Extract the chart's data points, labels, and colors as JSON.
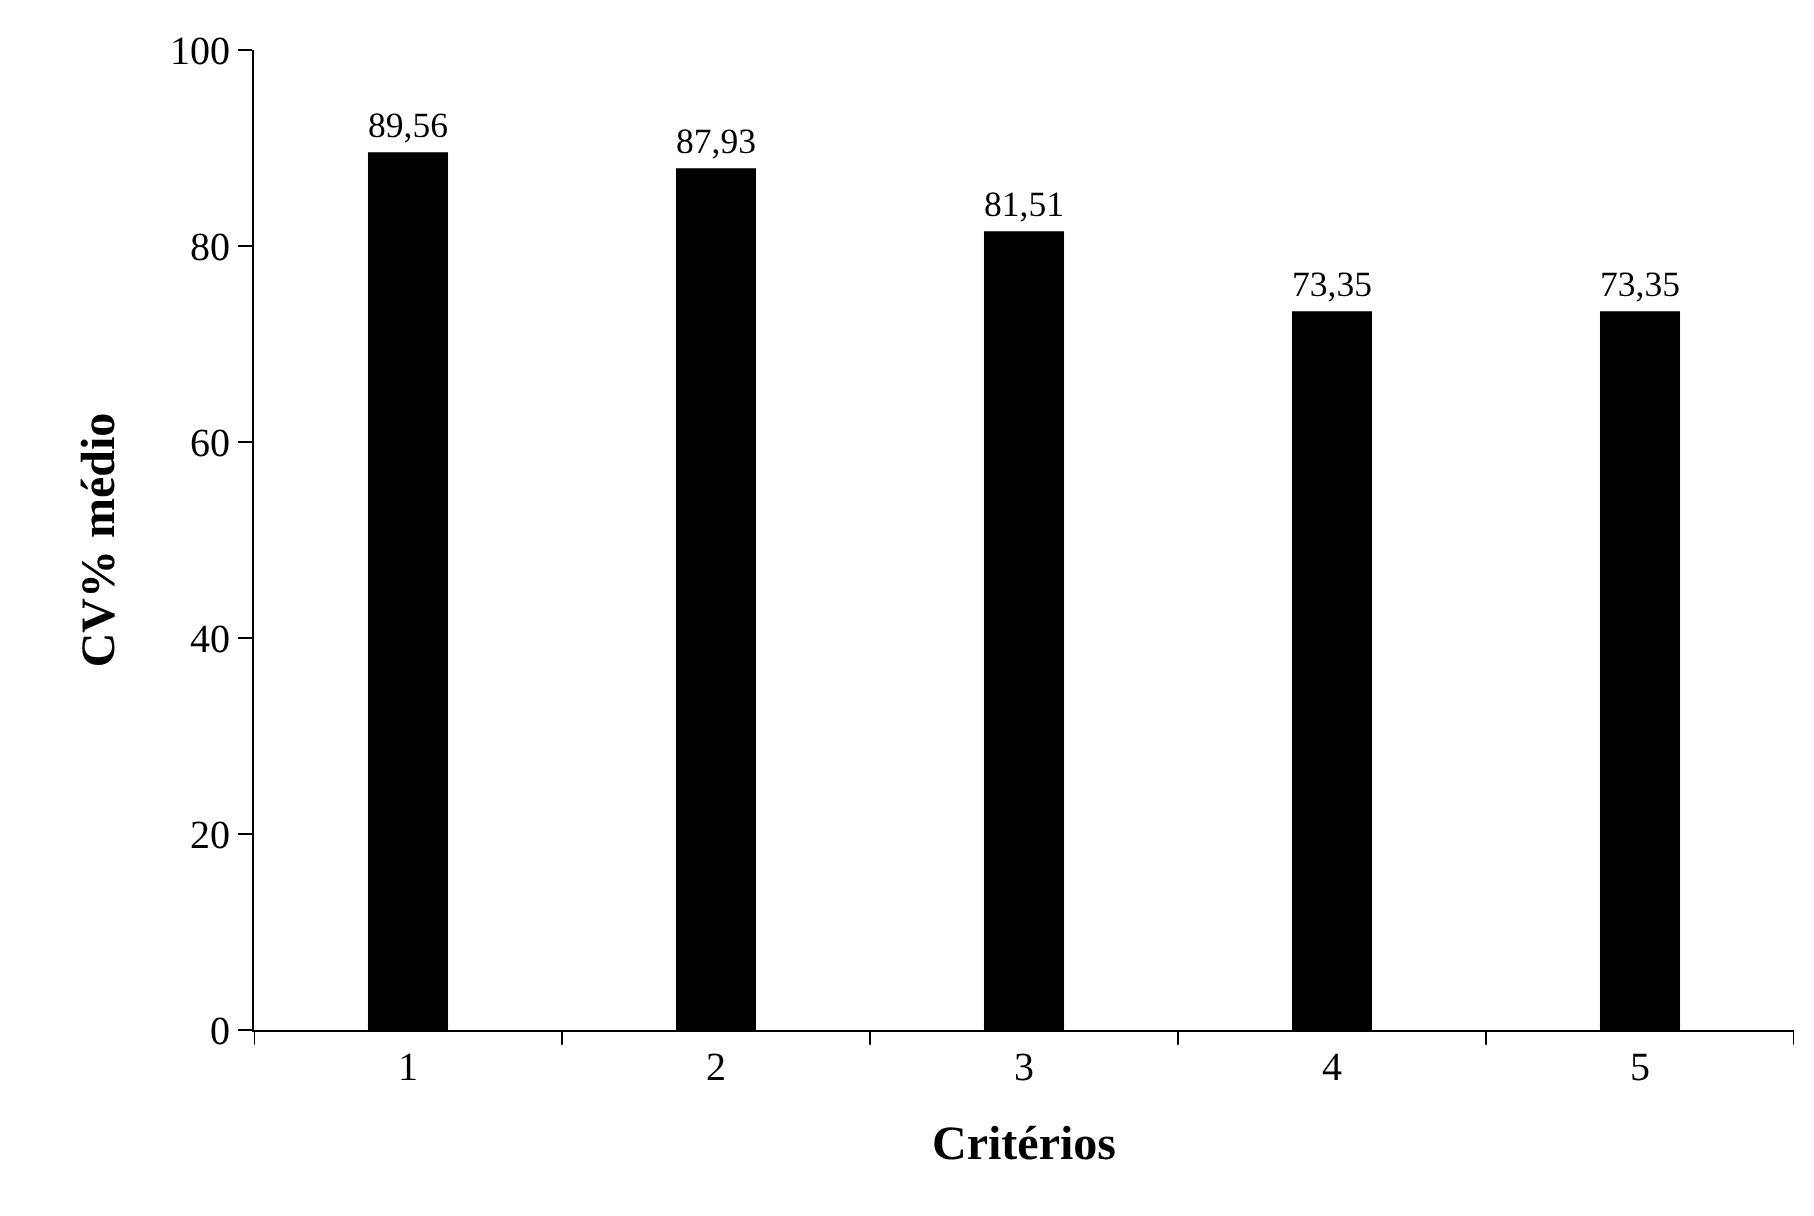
{
  "chart_data": {
    "type": "bar",
    "xlabel": "Critérios",
    "ylabel": "CV% médio",
    "categories": [
      "1",
      "2",
      "3",
      "4",
      "5"
    ],
    "values": [
      89.56,
      87.93,
      81.51,
      73.35,
      73.35
    ],
    "value_labels": [
      "89,56",
      "87,93",
      "81,51",
      "73,35",
      "73,35"
    ],
    "color": "#000000",
    "ylim": [
      0,
      100
    ],
    "yticks": [
      0,
      20,
      40,
      60,
      80,
      100
    ],
    "grid": false,
    "legend": false
  }
}
